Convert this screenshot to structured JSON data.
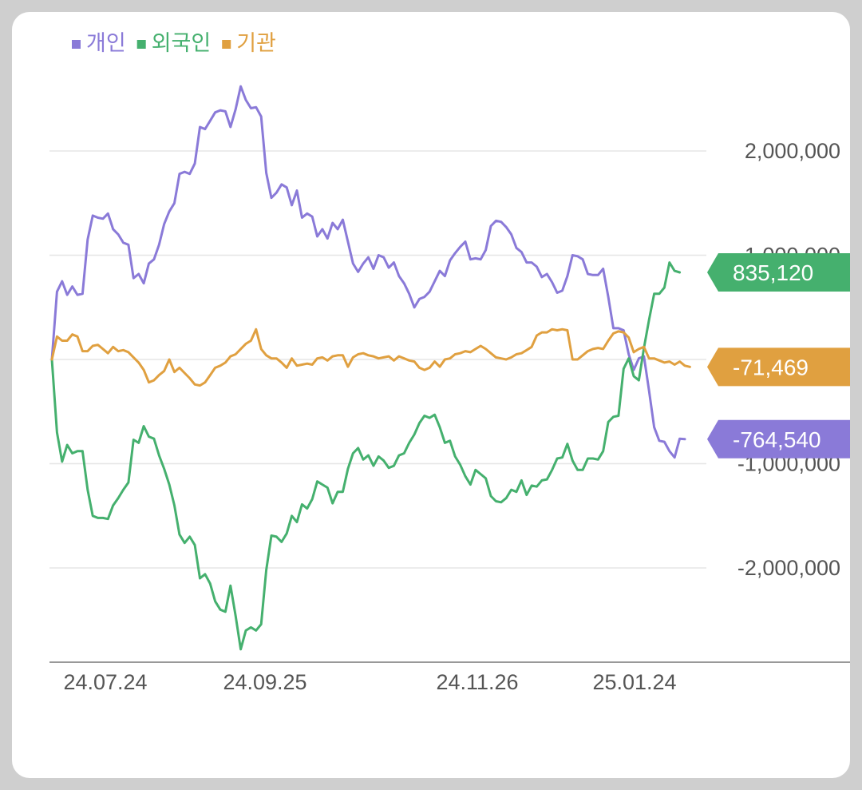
{
  "chart_data": {
    "type": "line",
    "x_tick_labels": [
      "24.07.24",
      "24.09.25",
      "24.11.26",
      "25.01.24"
    ],
    "y_tick_labels": [
      "2,000,000",
      "1,000,000",
      "-1,000,000",
      "-2,000,000"
    ],
    "y_ticks": [
      2000000,
      1000000,
      0,
      -1000000,
      -2000000
    ],
    "ylim": [
      -2900000,
      2700000
    ],
    "grid": true,
    "legend_position": "top-left",
    "series": [
      {
        "name": "개인",
        "color": "#8a7ad8",
        "last_value_label": "-764,540",
        "values": [
          0,
          650000,
          750000,
          620000,
          700000,
          620000,
          630000,
          1150000,
          1380000,
          1360000,
          1350000,
          1400000,
          1250000,
          1200000,
          1120000,
          1100000,
          780000,
          820000,
          730000,
          920000,
          960000,
          1100000,
          1300000,
          1420000,
          1500000,
          1780000,
          1800000,
          1780000,
          1880000,
          2230000,
          2210000,
          2290000,
          2370000,
          2390000,
          2380000,
          2230000,
          2400000,
          2620000,
          2490000,
          2410000,
          2420000,
          2330000,
          1790000,
          1550000,
          1600000,
          1680000,
          1650000,
          1480000,
          1620000,
          1360000,
          1400000,
          1370000,
          1180000,
          1250000,
          1160000,
          1310000,
          1250000,
          1340000,
          1130000,
          920000,
          840000,
          920000,
          980000,
          870000,
          1000000,
          980000,
          880000,
          930000,
          800000,
          730000,
          630000,
          500000,
          580000,
          600000,
          650000,
          750000,
          850000,
          800000,
          950000,
          1020000,
          1080000,
          1130000,
          960000,
          970000,
          960000,
          1050000,
          1280000,
          1330000,
          1320000,
          1270000,
          1200000,
          1070000,
          1030000,
          930000,
          930000,
          890000,
          790000,
          820000,
          740000,
          640000,
          660000,
          800000,
          1000000,
          990000,
          960000,
          820000,
          810000,
          810000,
          870000,
          600000,
          300000,
          300000,
          280000,
          50000,
          -100000,
          10000,
          30000,
          -300000,
          -650000,
          -780000,
          -790000,
          -880000,
          -940000,
          -760000,
          -764540
        ]
      },
      {
        "name": "외국인",
        "color": "#45b06e",
        "last_value_label": "835,120",
        "values": [
          0,
          -700000,
          -980000,
          -820000,
          -900000,
          -880000,
          -880000,
          -1250000,
          -1500000,
          -1520000,
          -1520000,
          -1530000,
          -1400000,
          -1330000,
          -1250000,
          -1180000,
          -770000,
          -800000,
          -640000,
          -740000,
          -760000,
          -920000,
          -1050000,
          -1200000,
          -1400000,
          -1680000,
          -1760000,
          -1700000,
          -1780000,
          -2100000,
          -2060000,
          -2150000,
          -2320000,
          -2400000,
          -2420000,
          -2170000,
          -2460000,
          -2780000,
          -2600000,
          -2570000,
          -2600000,
          -2540000,
          -2020000,
          -1690000,
          -1700000,
          -1750000,
          -1670000,
          -1500000,
          -1560000,
          -1390000,
          -1430000,
          -1340000,
          -1170000,
          -1200000,
          -1230000,
          -1380000,
          -1270000,
          -1270000,
          -1050000,
          -900000,
          -850000,
          -960000,
          -920000,
          -1020000,
          -930000,
          -970000,
          -1040000,
          -1020000,
          -920000,
          -900000,
          -800000,
          -720000,
          -610000,
          -540000,
          -560000,
          -530000,
          -650000,
          -800000,
          -780000,
          -930000,
          -1010000,
          -1120000,
          -1200000,
          -1060000,
          -1100000,
          -1140000,
          -1310000,
          -1360000,
          -1370000,
          -1330000,
          -1250000,
          -1270000,
          -1160000,
          -1300000,
          -1210000,
          -1220000,
          -1160000,
          -1150000,
          -1060000,
          -950000,
          -940000,
          -810000,
          -970000,
          -1060000,
          -1060000,
          -950000,
          -950000,
          -960000,
          -880000,
          -600000,
          -550000,
          -540000,
          -90000,
          10000,
          -160000,
          -200000,
          110000,
          380000,
          630000,
          630000,
          690000,
          930000,
          850000,
          835120
        ]
      },
      {
        "name": "기관",
        "color": "#e0a040",
        "last_value_label": "-71,469",
        "values": [
          0,
          220000,
          180000,
          180000,
          240000,
          220000,
          80000,
          80000,
          130000,
          140000,
          100000,
          60000,
          120000,
          80000,
          90000,
          70000,
          20000,
          -30000,
          -100000,
          -220000,
          -200000,
          -150000,
          -110000,
          0,
          -120000,
          -80000,
          -130000,
          -180000,
          -240000,
          -250000,
          -220000,
          -150000,
          -80000,
          -60000,
          -30000,
          30000,
          50000,
          100000,
          150000,
          180000,
          290000,
          100000,
          40000,
          10000,
          10000,
          -30000,
          -80000,
          10000,
          -60000,
          -50000,
          -40000,
          -50000,
          10000,
          20000,
          -10000,
          30000,
          40000,
          40000,
          -70000,
          20000,
          50000,
          60000,
          40000,
          30000,
          10000,
          20000,
          30000,
          -10000,
          30000,
          10000,
          -10000,
          -20000,
          -80000,
          -100000,
          -80000,
          -20000,
          -70000,
          0,
          10000,
          50000,
          60000,
          80000,
          70000,
          100000,
          130000,
          100000,
          60000,
          20000,
          10000,
          0,
          20000,
          50000,
          60000,
          90000,
          120000,
          230000,
          260000,
          260000,
          290000,
          280000,
          290000,
          280000,
          0,
          0,
          40000,
          80000,
          100000,
          110000,
          100000,
          180000,
          250000,
          270000,
          260000,
          210000,
          70000,
          100000,
          120000,
          10000,
          10000,
          -10000,
          -30000,
          -20000,
          -50000,
          -20000,
          -60000,
          -71469
        ]
      }
    ]
  }
}
